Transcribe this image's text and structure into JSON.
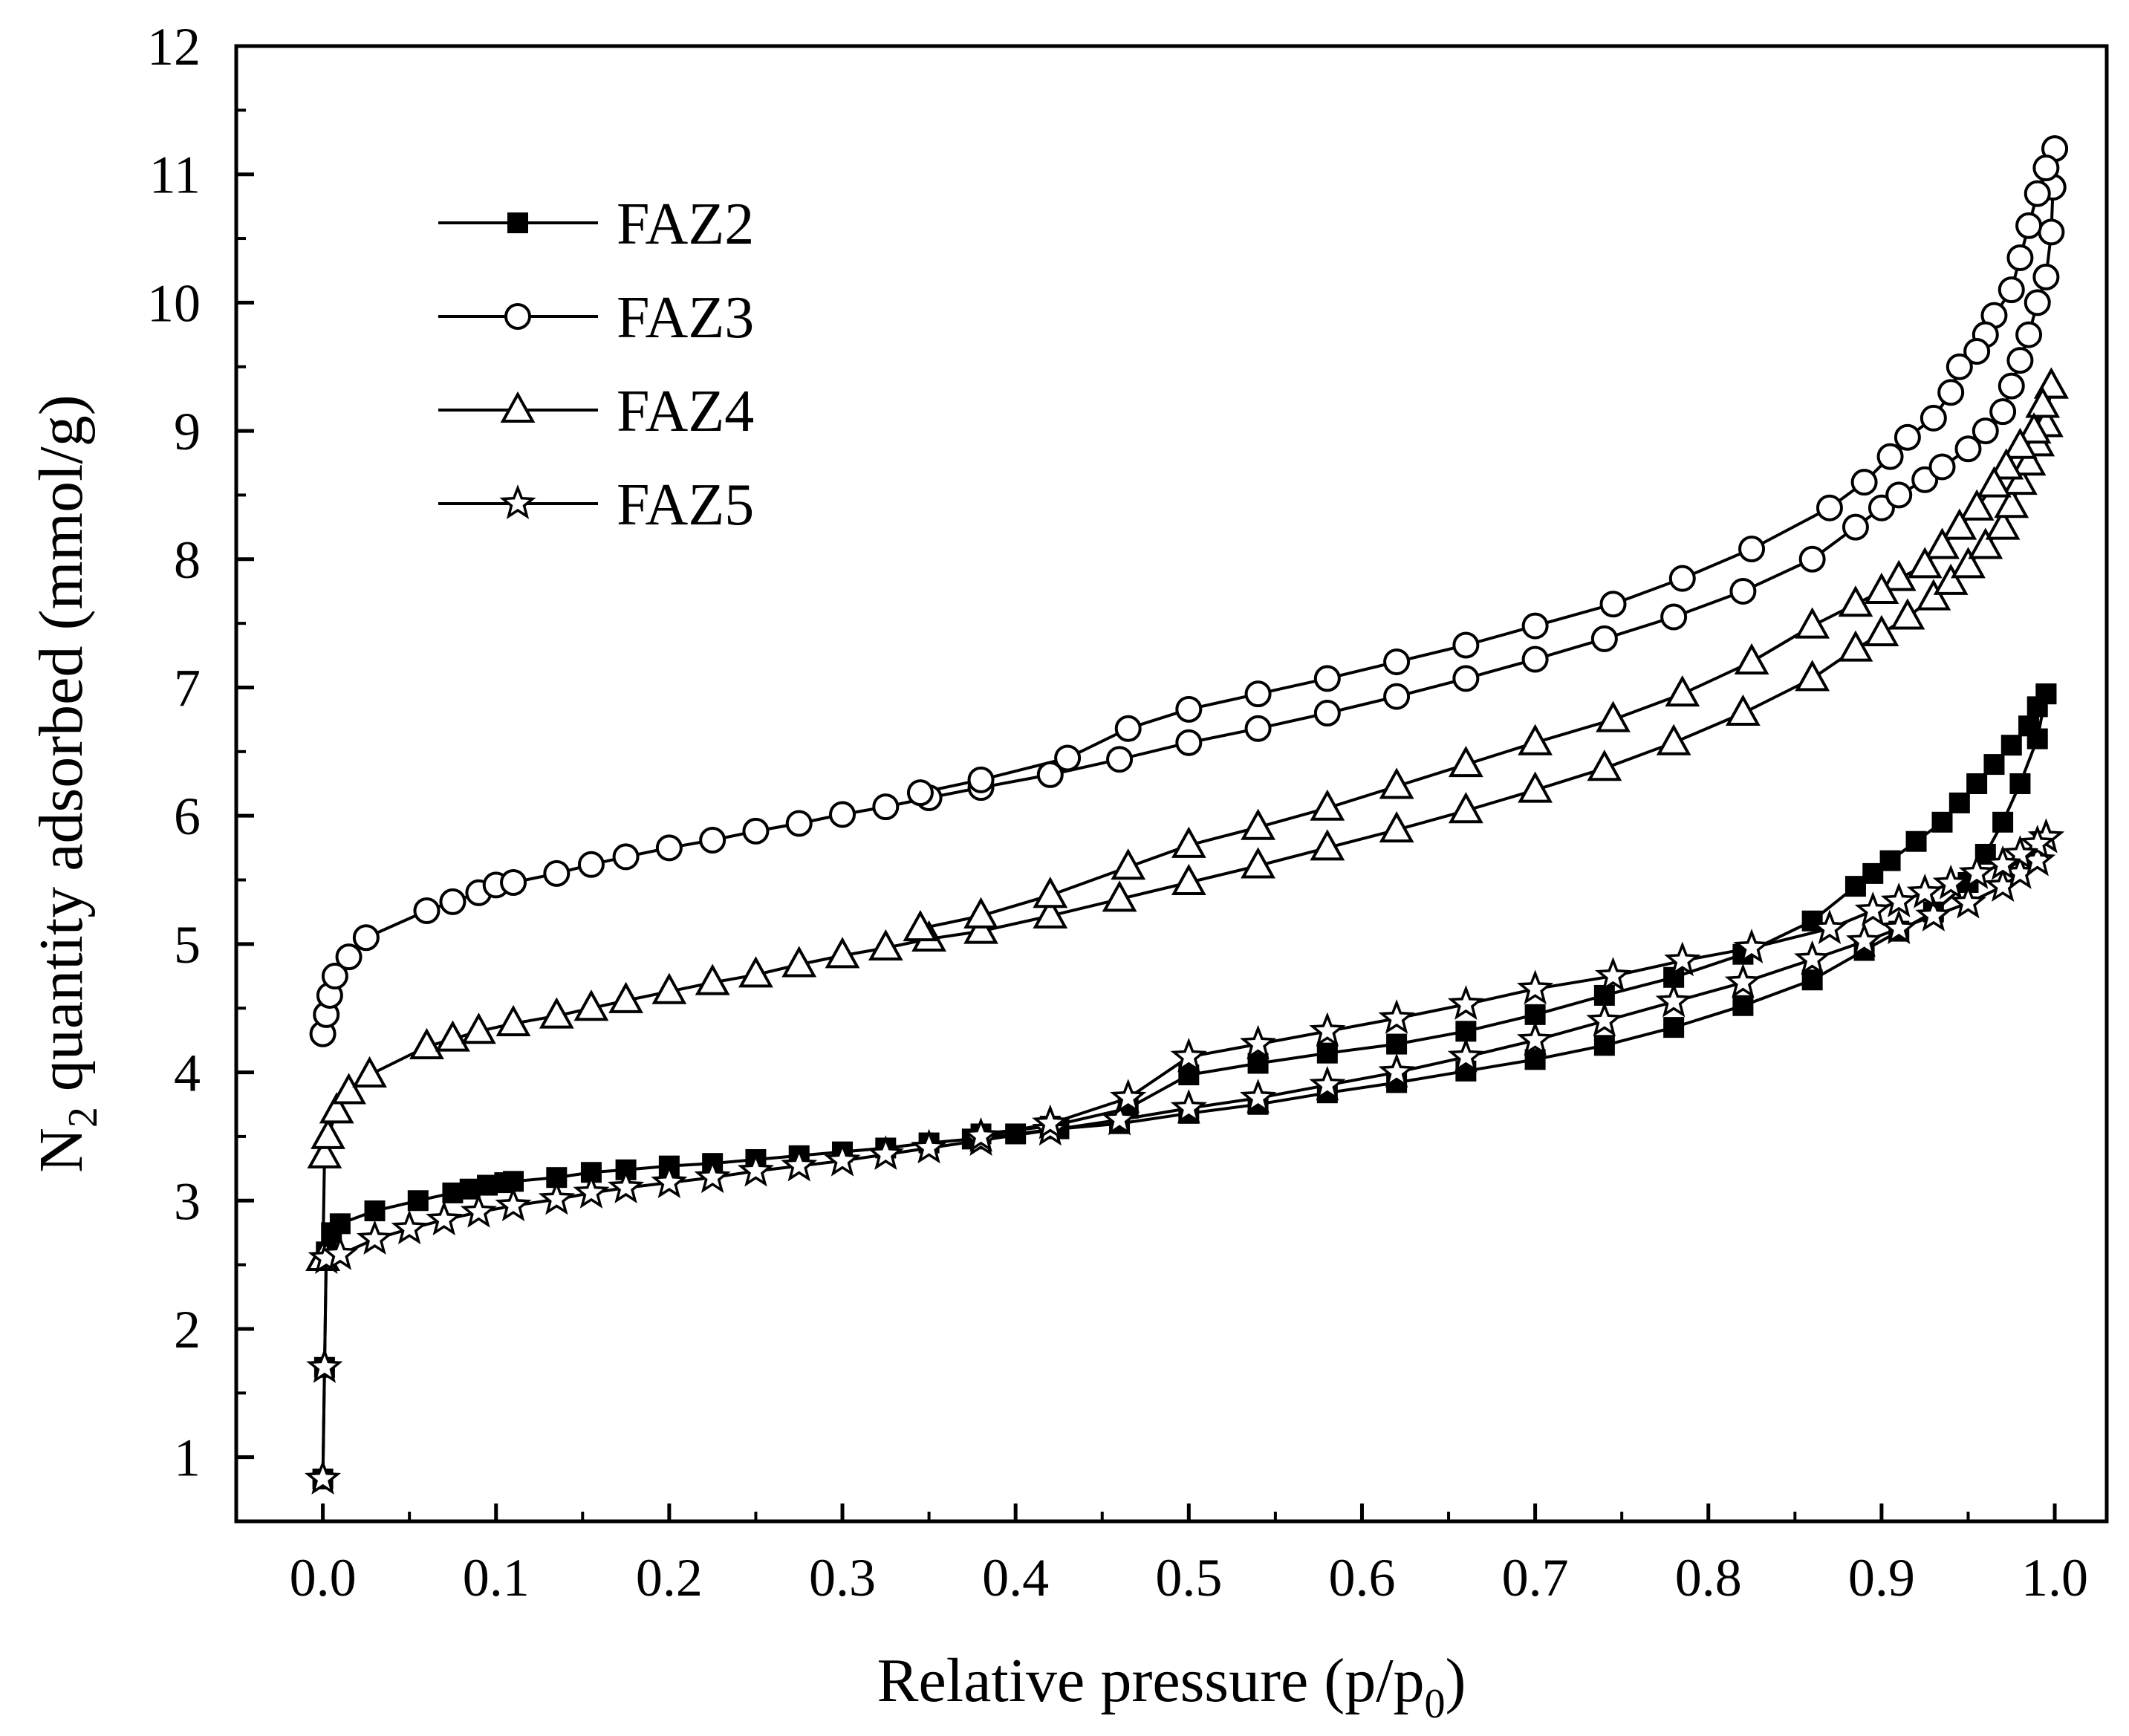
{
  "chart_data": {
    "type": "line",
    "title": "",
    "xlabel": "Relative pressure (p/p",
    "xlabel_sub": "0",
    "xlabel_end": ")",
    "ylabel_prefix": "N",
    "ylabel_sub": "2",
    "ylabel_rest": " quantity adsorbed (mmol/g)",
    "xlim": [
      -0.05,
      1.03
    ],
    "ylim": [
      0.5,
      12
    ],
    "xticks": [
      0.0,
      0.1,
      0.2,
      0.3,
      0.4,
      0.5,
      0.6,
      0.7,
      0.8,
      0.9,
      1.0
    ],
    "xtick_labels": [
      "0.0",
      "0.1",
      "0.2",
      "0.3",
      "0.4",
      "0.5",
      "0.6",
      "0.7",
      "0.8",
      "0.9",
      "1.0"
    ],
    "yticks": [
      1,
      2,
      3,
      4,
      5,
      6,
      7,
      8,
      9,
      10,
      11,
      12
    ],
    "ytick_labels": [
      "1",
      "2",
      "3",
      "4",
      "5",
      "6",
      "7",
      "8",
      "9",
      "10",
      "11",
      "12"
    ],
    "legend_position": "top-left",
    "series": [
      {
        "name": "FAZ2",
        "marker": "square-filled",
        "adsorption": [
          [
            0.0,
            0.83
          ],
          [
            0.001,
            1.7
          ],
          [
            0.002,
            2.6
          ],
          [
            0.005,
            2.75
          ],
          [
            0.01,
            2.82
          ],
          [
            0.03,
            2.92
          ],
          [
            0.055,
            3.0
          ],
          [
            0.075,
            3.06
          ],
          [
            0.085,
            3.09
          ],
          [
            0.095,
            3.12
          ],
          [
            0.105,
            3.14
          ],
          [
            0.11,
            3.15
          ],
          [
            0.135,
            3.18
          ],
          [
            0.155,
            3.22
          ],
          [
            0.175,
            3.24
          ],
          [
            0.2,
            3.27
          ],
          [
            0.225,
            3.29
          ],
          [
            0.25,
            3.32
          ],
          [
            0.275,
            3.35
          ],
          [
            0.3,
            3.38
          ],
          [
            0.325,
            3.41
          ],
          [
            0.35,
            3.45
          ],
          [
            0.375,
            3.48
          ],
          [
            0.4,
            3.52
          ],
          [
            0.425,
            3.56
          ],
          [
            0.46,
            3.6
          ],
          [
            0.5,
            3.68
          ],
          [
            0.54,
            3.75
          ],
          [
            0.58,
            3.84
          ],
          [
            0.62,
            3.92
          ],
          [
            0.66,
            4.01
          ],
          [
            0.7,
            4.1
          ],
          [
            0.74,
            4.21
          ],
          [
            0.78,
            4.35
          ],
          [
            0.82,
            4.52
          ],
          [
            0.86,
            4.72
          ],
          [
            0.89,
            4.95
          ],
          [
            0.91,
            5.1
          ],
          [
            0.93,
            5.25
          ],
          [
            0.95,
            5.48
          ],
          [
            0.96,
            5.7
          ],
          [
            0.97,
            5.95
          ],
          [
            0.98,
            6.25
          ],
          [
            0.99,
            6.6
          ],
          [
            0.995,
            6.95
          ]
        ],
        "desorption": [
          [
            0.995,
            6.95
          ],
          [
            0.99,
            6.85
          ],
          [
            0.985,
            6.7
          ],
          [
            0.975,
            6.55
          ],
          [
            0.965,
            6.4
          ],
          [
            0.955,
            6.25
          ],
          [
            0.945,
            6.1
          ],
          [
            0.935,
            5.95
          ],
          [
            0.92,
            5.8
          ],
          [
            0.905,
            5.65
          ],
          [
            0.895,
            5.55
          ],
          [
            0.885,
            5.45
          ],
          [
            0.86,
            5.18
          ],
          [
            0.82,
            4.92
          ],
          [
            0.78,
            4.74
          ],
          [
            0.74,
            4.6
          ],
          [
            0.7,
            4.45
          ],
          [
            0.66,
            4.32
          ],
          [
            0.62,
            4.22
          ],
          [
            0.58,
            4.15
          ],
          [
            0.54,
            4.07
          ],
          [
            0.5,
            3.98
          ],
          [
            0.465,
            3.72
          ],
          [
            0.42,
            3.58
          ],
          [
            0.38,
            3.52
          ]
        ]
      },
      {
        "name": "FAZ3",
        "marker": "circle-open",
        "adsorption": [
          [
            0.0,
            4.3
          ],
          [
            0.002,
            4.45
          ],
          [
            0.004,
            4.6
          ],
          [
            0.007,
            4.75
          ],
          [
            0.015,
            4.9
          ],
          [
            0.025,
            5.05
          ],
          [
            0.06,
            5.26
          ],
          [
            0.075,
            5.33
          ],
          [
            0.09,
            5.4
          ],
          [
            0.1,
            5.46
          ],
          [
            0.11,
            5.48
          ],
          [
            0.135,
            5.55
          ],
          [
            0.155,
            5.62
          ],
          [
            0.175,
            5.68
          ],
          [
            0.2,
            5.75
          ],
          [
            0.225,
            5.81
          ],
          [
            0.25,
            5.88
          ],
          [
            0.275,
            5.94
          ],
          [
            0.3,
            6.01
          ],
          [
            0.325,
            6.07
          ],
          [
            0.35,
            6.14
          ],
          [
            0.38,
            6.22
          ],
          [
            0.42,
            6.32
          ],
          [
            0.46,
            6.44
          ],
          [
            0.5,
            6.57
          ],
          [
            0.54,
            6.68
          ],
          [
            0.58,
            6.8
          ],
          [
            0.62,
            6.93
          ],
          [
            0.66,
            7.07
          ],
          [
            0.7,
            7.22
          ],
          [
            0.74,
            7.38
          ],
          [
            0.78,
            7.55
          ],
          [
            0.82,
            7.75
          ],
          [
            0.86,
            8.0
          ],
          [
            0.885,
            8.25
          ],
          [
            0.9,
            8.4
          ],
          [
            0.91,
            8.5
          ],
          [
            0.925,
            8.62
          ],
          [
            0.935,
            8.72
          ],
          [
            0.95,
            8.86
          ],
          [
            0.96,
            9.0
          ],
          [
            0.97,
            9.15
          ],
          [
            0.975,
            9.35
          ],
          [
            0.98,
            9.55
          ],
          [
            0.985,
            9.75
          ],
          [
            0.99,
            10.0
          ],
          [
            0.995,
            10.2
          ],
          [
            0.998,
            10.55
          ],
          [
            0.999,
            10.9
          ],
          [
            1.0,
            11.2
          ]
        ],
        "desorption": [
          [
            1.0,
            11.2
          ],
          [
            0.995,
            11.05
          ],
          [
            0.99,
            10.85
          ],
          [
            0.985,
            10.6
          ],
          [
            0.98,
            10.35
          ],
          [
            0.975,
            10.1
          ],
          [
            0.965,
            9.9
          ],
          [
            0.96,
            9.75
          ],
          [
            0.955,
            9.62
          ],
          [
            0.945,
            9.5
          ],
          [
            0.94,
            9.3
          ],
          [
            0.93,
            9.1
          ],
          [
            0.915,
            8.95
          ],
          [
            0.905,
            8.8
          ],
          [
            0.89,
            8.6
          ],
          [
            0.87,
            8.4
          ],
          [
            0.825,
            8.08
          ],
          [
            0.785,
            7.85
          ],
          [
            0.745,
            7.65
          ],
          [
            0.7,
            7.48
          ],
          [
            0.66,
            7.33
          ],
          [
            0.62,
            7.2
          ],
          [
            0.58,
            7.07
          ],
          [
            0.54,
            6.95
          ],
          [
            0.5,
            6.83
          ],
          [
            0.465,
            6.68
          ],
          [
            0.43,
            6.45
          ],
          [
            0.38,
            6.28
          ],
          [
            0.345,
            6.18
          ]
        ]
      },
      {
        "name": "FAZ4",
        "marker": "triangle-open",
        "adsorption": [
          [
            0.0,
            2.55
          ],
          [
            0.001,
            3.35
          ],
          [
            0.003,
            3.5
          ],
          [
            0.008,
            3.7
          ],
          [
            0.015,
            3.85
          ],
          [
            0.027,
            3.98
          ],
          [
            0.06,
            4.2
          ],
          [
            0.075,
            4.26
          ],
          [
            0.09,
            4.32
          ],
          [
            0.11,
            4.38
          ],
          [
            0.135,
            4.44
          ],
          [
            0.155,
            4.5
          ],
          [
            0.175,
            4.56
          ],
          [
            0.2,
            4.63
          ],
          [
            0.225,
            4.7
          ],
          [
            0.25,
            4.76
          ],
          [
            0.275,
            4.84
          ],
          [
            0.3,
            4.91
          ],
          [
            0.325,
            4.97
          ],
          [
            0.35,
            5.04
          ],
          [
            0.38,
            5.1
          ],
          [
            0.42,
            5.22
          ],
          [
            0.46,
            5.35
          ],
          [
            0.5,
            5.48
          ],
          [
            0.54,
            5.61
          ],
          [
            0.58,
            5.75
          ],
          [
            0.62,
            5.89
          ],
          [
            0.66,
            6.04
          ],
          [
            0.7,
            6.2
          ],
          [
            0.74,
            6.37
          ],
          [
            0.78,
            6.57
          ],
          [
            0.82,
            6.8
          ],
          [
            0.86,
            7.07
          ],
          [
            0.885,
            7.3
          ],
          [
            0.9,
            7.42
          ],
          [
            0.915,
            7.55
          ],
          [
            0.93,
            7.7
          ],
          [
            0.94,
            7.82
          ],
          [
            0.95,
            7.95
          ],
          [
            0.96,
            8.1
          ],
          [
            0.97,
            8.25
          ],
          [
            0.975,
            8.42
          ],
          [
            0.98,
            8.6
          ],
          [
            0.985,
            8.75
          ],
          [
            0.99,
            8.9
          ],
          [
            0.995,
            9.05
          ],
          [
            0.998,
            9.35
          ]
        ],
        "desorption": [
          [
            0.998,
            9.35
          ],
          [
            0.993,
            9.2
          ],
          [
            0.988,
            9.0
          ],
          [
            0.98,
            8.88
          ],
          [
            0.972,
            8.72
          ],
          [
            0.965,
            8.58
          ],
          [
            0.955,
            8.4
          ],
          [
            0.945,
            8.25
          ],
          [
            0.935,
            8.1
          ],
          [
            0.925,
            7.95
          ],
          [
            0.91,
            7.85
          ],
          [
            0.9,
            7.75
          ],
          [
            0.885,
            7.65
          ],
          [
            0.86,
            7.48
          ],
          [
            0.825,
            7.2
          ],
          [
            0.785,
            6.95
          ],
          [
            0.745,
            6.75
          ],
          [
            0.7,
            6.57
          ],
          [
            0.66,
            6.4
          ],
          [
            0.62,
            6.23
          ],
          [
            0.58,
            6.06
          ],
          [
            0.54,
            5.91
          ],
          [
            0.5,
            5.77
          ],
          [
            0.465,
            5.6
          ],
          [
            0.42,
            5.38
          ],
          [
            0.38,
            5.22
          ],
          [
            0.345,
            5.12
          ]
        ]
      },
      {
        "name": "FAZ5",
        "marker": "star-open",
        "adsorption": [
          [
            0.0,
            0.83
          ],
          [
            0.001,
            1.7
          ],
          [
            0.002,
            2.55
          ],
          [
            0.01,
            2.58
          ],
          [
            0.03,
            2.7
          ],
          [
            0.05,
            2.78
          ],
          [
            0.07,
            2.85
          ],
          [
            0.09,
            2.91
          ],
          [
            0.11,
            2.96
          ],
          [
            0.135,
            3.01
          ],
          [
            0.155,
            3.06
          ],
          [
            0.175,
            3.1
          ],
          [
            0.2,
            3.14
          ],
          [
            0.225,
            3.18
          ],
          [
            0.25,
            3.23
          ],
          [
            0.275,
            3.27
          ],
          [
            0.3,
            3.31
          ],
          [
            0.325,
            3.36
          ],
          [
            0.35,
            3.41
          ],
          [
            0.38,
            3.47
          ],
          [
            0.42,
            3.55
          ],
          [
            0.46,
            3.63
          ],
          [
            0.5,
            3.72
          ],
          [
            0.54,
            3.8
          ],
          [
            0.58,
            3.9
          ],
          [
            0.62,
            4.0
          ],
          [
            0.66,
            4.12
          ],
          [
            0.7,
            4.25
          ],
          [
            0.74,
            4.4
          ],
          [
            0.78,
            4.55
          ],
          [
            0.82,
            4.7
          ],
          [
            0.86,
            4.88
          ],
          [
            0.89,
            5.02
          ],
          [
            0.91,
            5.12
          ],
          [
            0.93,
            5.22
          ],
          [
            0.95,
            5.32
          ],
          [
            0.97,
            5.45
          ],
          [
            0.98,
            5.55
          ],
          [
            0.99,
            5.65
          ],
          [
            0.995,
            5.83
          ]
        ],
        "desorption": [
          [
            0.995,
            5.83
          ],
          [
            0.99,
            5.78
          ],
          [
            0.98,
            5.7
          ],
          [
            0.97,
            5.62
          ],
          [
            0.955,
            5.55
          ],
          [
            0.94,
            5.47
          ],
          [
            0.925,
            5.4
          ],
          [
            0.91,
            5.33
          ],
          [
            0.895,
            5.26
          ],
          [
            0.87,
            5.12
          ],
          [
            0.825,
            4.97
          ],
          [
            0.785,
            4.87
          ],
          [
            0.745,
            4.75
          ],
          [
            0.7,
            4.65
          ],
          [
            0.66,
            4.53
          ],
          [
            0.62,
            4.42
          ],
          [
            0.58,
            4.32
          ],
          [
            0.54,
            4.22
          ],
          [
            0.5,
            4.12
          ],
          [
            0.465,
            3.8
          ],
          [
            0.42,
            3.6
          ],
          [
            0.38,
            3.5
          ]
        ]
      }
    ]
  }
}
